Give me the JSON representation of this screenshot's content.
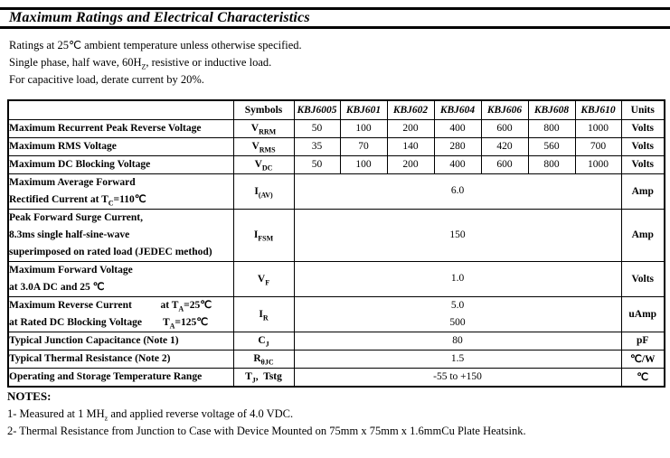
{
  "colors": {
    "text": "#000000",
    "background": "#ffffff",
    "border": "#000000"
  },
  "page": {
    "title": "Maximum Ratings and Electrical Characteristics",
    "intro_lines": [
      [
        {
          "t": "Ratings at 25℃ ambient temperature unless otherwise specified."
        }
      ],
      [
        {
          "t": "Single phase, half wave, 60H"
        },
        {
          "sub": "Z"
        },
        {
          "t": ", resistive or inductive load."
        }
      ],
      [
        {
          "t": "For capacitive load, derate current by 20%."
        }
      ]
    ]
  },
  "table": {
    "headers": {
      "corner": "",
      "symbols": "Symbols",
      "models": [
        "KBJ6005",
        "KBJ601",
        "KBJ602",
        "KBJ604",
        "KBJ606",
        "KBJ608",
        "KBJ610"
      ],
      "units": "Units"
    },
    "rows": [
      {
        "param_lines": [
          [
            {
              "t": "Maximum Recurrent Peak Reverse Voltage"
            }
          ]
        ],
        "symbol": [
          {
            "t": "V"
          },
          {
            "sub": "RRM"
          }
        ],
        "values": [
          "50",
          "100",
          "200",
          "400",
          "600",
          "800",
          "1000"
        ],
        "unit": "Volts"
      },
      {
        "param_lines": [
          [
            {
              "t": "Maximum RMS Voltage"
            }
          ]
        ],
        "symbol": [
          {
            "t": "V"
          },
          {
            "sub": "RMS"
          }
        ],
        "values": [
          "35",
          "70",
          "140",
          "280",
          "420",
          "560",
          "700"
        ],
        "unit": "Volts"
      },
      {
        "param_lines": [
          [
            {
              "t": "Maximum DC Blocking Voltage"
            }
          ]
        ],
        "symbol": [
          {
            "t": "V"
          },
          {
            "sub": "DC"
          }
        ],
        "values": [
          "50",
          "100",
          "200",
          "400",
          "600",
          "800",
          "1000"
        ],
        "unit": "Volts"
      },
      {
        "param_lines": [
          [
            {
              "t": "Maximum Average Forward"
            }
          ],
          [
            {
              "t": "Rectified Current at T"
            },
            {
              "sub": "C"
            },
            {
              "t": "=110℃"
            }
          ]
        ],
        "symbol": [
          {
            "t": "I"
          },
          {
            "sub": "(AV)"
          }
        ],
        "merged_values": [
          "6.0"
        ],
        "unit": "Amp"
      },
      {
        "param_lines": [
          [
            {
              "t": "Peak Forward Surge Current,"
            }
          ],
          [
            {
              "t": "8.3ms single half-sine-wave"
            }
          ],
          [
            {
              "t": "superimposed on rated load (JEDEC method)"
            }
          ]
        ],
        "symbol": [
          {
            "t": "I"
          },
          {
            "sub": "FSM"
          }
        ],
        "merged_values": [
          "150"
        ],
        "unit": "Amp"
      },
      {
        "param_lines": [
          [
            {
              "t": "Maximum Forward Voltage"
            }
          ],
          [
            {
              "t": "at 3.0A DC and 25 ℃"
            }
          ]
        ],
        "symbol": [
          {
            "t": "V"
          },
          {
            "sub": "F"
          }
        ],
        "merged_values": [
          "1.0"
        ],
        "unit": "Volts"
      },
      {
        "param_lines": [
          [
            {
              "t": "Maximum Reverse Current           at T"
            },
            {
              "sub": "A"
            },
            {
              "t": "=25℃"
            }
          ],
          [
            {
              "t": "at Rated DC Blocking Voltage        T"
            },
            {
              "sub": "A"
            },
            {
              "t": "=125℃"
            }
          ]
        ],
        "symbol": [
          {
            "t": "I"
          },
          {
            "sub": "R"
          }
        ],
        "merged_values": [
          "5.0",
          "500"
        ],
        "unit": "uAmp"
      },
      {
        "param_lines": [
          [
            {
              "t": "Typical Junction Capacitance (Note 1)"
            }
          ]
        ],
        "symbol": [
          {
            "t": "C"
          },
          {
            "sub": "J"
          }
        ],
        "merged_values": [
          "80"
        ],
        "unit": "pF"
      },
      {
        "param_lines": [
          [
            {
              "t": "Typical Thermal Resistance (Note 2)"
            }
          ]
        ],
        "symbol": [
          {
            "t": "R"
          },
          {
            "sub": "θJC"
          }
        ],
        "merged_values": [
          "1.5"
        ],
        "unit": "℃/W"
      },
      {
        "param_lines": [
          [
            {
              "t": "Operating and Storage Temperature Range"
            }
          ]
        ],
        "symbol": [
          {
            "t": "T"
          },
          {
            "sub": "J"
          },
          {
            "t": ",  Tstg"
          }
        ],
        "merged_values": [
          "-55 to +150"
        ],
        "unit": "℃"
      }
    ]
  },
  "notes": {
    "heading": "NOTES:",
    "items": [
      [
        {
          "t": "1- Measured at 1 MH"
        },
        {
          "sub": "z"
        },
        {
          "t": " and applied reverse voltage of 4.0 VDC."
        }
      ],
      [
        {
          "t": "2- Thermal Resistance from Junction to Case with Device Mounted on 75mm x 75mm x 1.6mmCu Plate Heatsink."
        }
      ]
    ]
  }
}
